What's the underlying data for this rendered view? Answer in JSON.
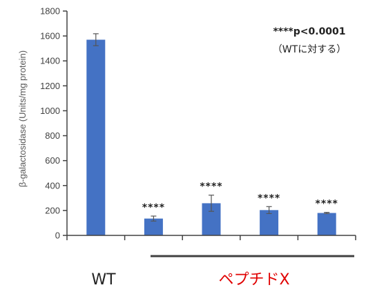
{
  "chart_data": {
    "type": "bar",
    "ylabel": "β-galactosidase (Units/mg protein)",
    "ylim": [
      0,
      1800
    ],
    "yticks": [
      0,
      200,
      400,
      600,
      800,
      1000,
      1200,
      1400,
      1600,
      1800
    ],
    "values": [
      1570,
      135,
      258,
      203,
      180
    ],
    "errors": [
      48,
      20,
      65,
      28,
      5
    ],
    "significance": [
      "",
      "****",
      "****",
      "****",
      "****"
    ],
    "bar_color": "#4472C4",
    "annotation": {
      "line1": "****p<0.0001",
      "line2": "（WTに対する）"
    },
    "groups": [
      {
        "label": "WT",
        "color": "#222222"
      },
      {
        "label": "ペプチドX",
        "color": "#E00000"
      }
    ]
  }
}
